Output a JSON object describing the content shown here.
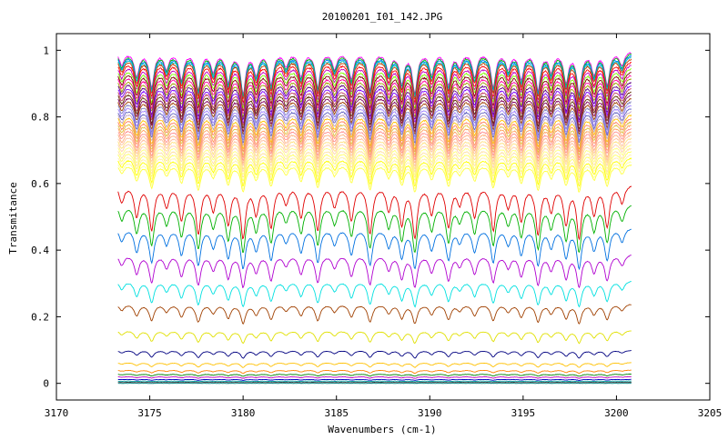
{
  "chart_data": {
    "type": "line",
    "title": "20100201_I01_142.JPG",
    "xlabel": "Wavenumbers (cm-1)",
    "ylabel": "Transmitance",
    "xlim": [
      3170,
      3205
    ],
    "ylim": [
      -0.05,
      1.05
    ],
    "x_ticks": [
      3170,
      3175,
      3180,
      3185,
      3190,
      3195,
      3200,
      3205
    ],
    "y_ticks": [
      0,
      0.2,
      0.4,
      0.6,
      0.8,
      1
    ],
    "x_tick_labels": [
      "3170",
      "3175",
      "3180",
      "3185",
      "3190",
      "3195",
      "3200",
      "3205"
    ],
    "y_tick_labels": [
      "0",
      "0.2",
      "0.4",
      "0.6",
      "0.8",
      "1"
    ],
    "x_range_of_data": [
      3173.3,
      3200.8
    ],
    "grid": false,
    "legend": "none",
    "absorption_lines_cm1": [
      3173.5,
      3174.3,
      3175.1,
      3175.9,
      3176.7,
      3177.6,
      3178.4,
      3179.2,
      3180.0,
      3180.7,
      3181.5,
      3182.3,
      3183.1,
      3184.0,
      3184.9,
      3185.8,
      3186.8,
      3187.8,
      3188.5,
      3189.2,
      3190.1,
      3191.0,
      3191.6,
      3192.4,
      3193.4,
      3194.2,
      3194.9,
      3195.8,
      3196.5,
      3197.3,
      3198.0,
      3198.8,
      3199.5,
      3200.3
    ],
    "series": [
      {
        "baseline": 1.0,
        "color": "#ff00ff"
      },
      {
        "baseline": 0.995,
        "color": "#00c000"
      },
      {
        "baseline": 0.99,
        "color": "#0080ff"
      },
      {
        "baseline": 0.985,
        "color": "#00c0c0"
      },
      {
        "baseline": 0.98,
        "color": "#c04000"
      },
      {
        "baseline": 0.97,
        "color": "#ff0000"
      },
      {
        "baseline": 0.96,
        "color": "#c000c0"
      },
      {
        "baseline": 0.95,
        "color": "#80ff00"
      },
      {
        "baseline": 0.94,
        "color": "#800000"
      },
      {
        "baseline": 0.93,
        "color": "#ff00a0"
      },
      {
        "baseline": 0.92,
        "color": "#a0a000"
      },
      {
        "baseline": 0.91,
        "color": "#600080"
      },
      {
        "baseline": 0.9,
        "color": "#8000ff"
      },
      {
        "baseline": 0.89,
        "color": "#c04060"
      },
      {
        "baseline": 0.88,
        "color": "#603000"
      },
      {
        "baseline": 0.87,
        "color": "#800060"
      },
      {
        "baseline": 0.86,
        "color": "#a04000"
      },
      {
        "baseline": 0.85,
        "color": "#8080c0"
      },
      {
        "baseline": 0.84,
        "color": "#a080ff"
      },
      {
        "baseline": 0.83,
        "color": "#6060c0"
      },
      {
        "baseline": 0.82,
        "color": "#c0a0c0"
      },
      {
        "baseline": 0.81,
        "color": "#ffc000"
      },
      {
        "baseline": 0.8,
        "color": "#ff8060"
      },
      {
        "baseline": 0.79,
        "color": "#e0c040"
      },
      {
        "baseline": 0.78,
        "color": "#ffa060"
      },
      {
        "baseline": 0.77,
        "color": "#ff9090"
      },
      {
        "baseline": 0.76,
        "color": "#ffb080"
      },
      {
        "baseline": 0.75,
        "color": "#ffc0a0"
      },
      {
        "baseline": 0.74,
        "color": "#ffe080"
      },
      {
        "baseline": 0.73,
        "color": "#ffd0b0"
      },
      {
        "baseline": 0.72,
        "color": "#ffff80"
      },
      {
        "baseline": 0.71,
        "color": "#ffe0a0"
      },
      {
        "baseline": 0.7,
        "color": "#ffff60"
      },
      {
        "baseline": 0.69,
        "color": "#fff0b0"
      },
      {
        "baseline": 0.68,
        "color": "#ffff00"
      },
      {
        "baseline": 0.67,
        "color": "#ffffa0"
      },
      {
        "baseline": 0.66,
        "color": "#ffff40"
      },
      {
        "baseline": 0.6,
        "color": "#e00000"
      },
      {
        "baseline": 0.54,
        "color": "#00b000"
      },
      {
        "baseline": 0.47,
        "color": "#0070e0"
      },
      {
        "baseline": 0.39,
        "color": "#b000d0"
      },
      {
        "baseline": 0.31,
        "color": "#00e0e0"
      },
      {
        "baseline": 0.24,
        "color": "#a04000"
      },
      {
        "baseline": 0.16,
        "color": "#e0e000"
      },
      {
        "baseline": 0.1,
        "color": "#000080"
      },
      {
        "baseline": 0.063,
        "color": "#ffc000"
      },
      {
        "baseline": 0.04,
        "color": "#ff8000"
      },
      {
        "baseline": 0.028,
        "color": "#008000"
      },
      {
        "baseline": 0.02,
        "color": "#c000c0"
      },
      {
        "baseline": 0.012,
        "color": "#0000c0"
      },
      {
        "baseline": 0.007,
        "color": "#00a0a0"
      },
      {
        "baseline": 0.003,
        "color": "#404040"
      },
      {
        "baseline": 0.0,
        "color": "#008080"
      }
    ]
  }
}
